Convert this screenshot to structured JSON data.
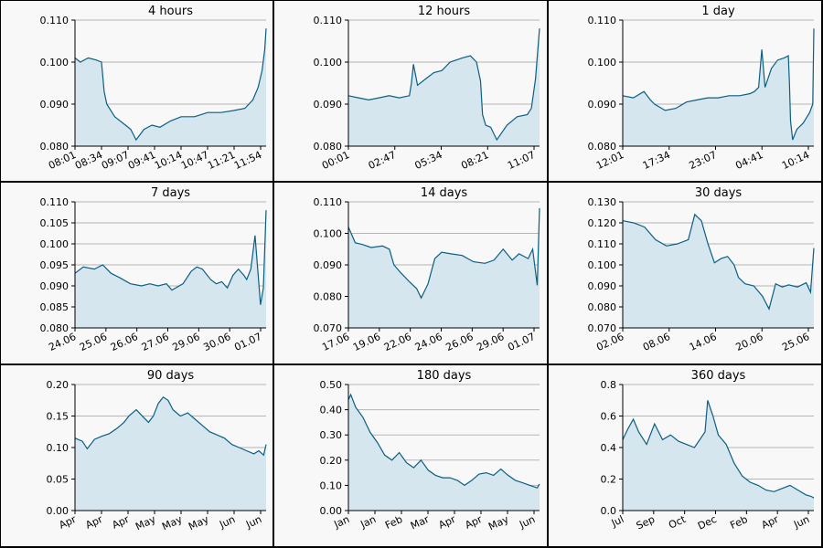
{
  "colors": {
    "line": "#0b5f82",
    "fill": "#d5e6ee",
    "grid": "#b5b5b5",
    "background": "#f8f8f8"
  },
  "chart_data": [
    {
      "type": "area",
      "title": "4 hours",
      "grid": true,
      "ylim": [
        0.08,
        0.11
      ],
      "yticks": [
        "0.080",
        "0.090",
        "0.100",
        "0.110"
      ],
      "xticks": [
        "08:01",
        "08:34",
        "09:07",
        "09:41",
        "10:14",
        "10:47",
        "11:21",
        "11:54"
      ],
      "x": [
        0,
        0.2,
        0.5,
        0.8,
        1.0,
        1.1,
        1.2,
        1.5,
        1.9,
        2.1,
        2.3,
        2.6,
        2.9,
        3.2,
        3.6,
        4.0,
        4.5,
        5.0,
        5.5,
        6.0,
        6.4,
        6.7,
        6.9,
        7.05,
        7.15,
        7.2
      ],
      "series": [
        {
          "values": [
            0.101,
            0.1,
            0.101,
            0.1005,
            0.1,
            0.093,
            0.09,
            0.087,
            0.085,
            0.084,
            0.0815,
            0.084,
            0.085,
            0.0845,
            0.086,
            0.087,
            0.087,
            0.088,
            0.088,
            0.0885,
            0.089,
            0.091,
            0.094,
            0.098,
            0.103,
            0.108
          ]
        }
      ]
    },
    {
      "type": "area",
      "title": "12 hours",
      "grid": true,
      "ylim": [
        0.08,
        0.11
      ],
      "yticks": [
        "0.080",
        "0.090",
        "0.100",
        "0.110"
      ],
      "xticks": [
        "00:01",
        "02:47",
        "05:34",
        "08:21",
        "11:07"
      ],
      "x": [
        0,
        0.5,
        1,
        1.5,
        2,
        2.5,
        3,
        3.1,
        3.2,
        3.4,
        3.8,
        4.2,
        4.6,
        5.0,
        5.6,
        6.0,
        6.3,
        6.5,
        6.6,
        6.75,
        7,
        7.3,
        7.8,
        8.3,
        8.8,
        9.0,
        9.2,
        9.4
      ],
      "series": [
        {
          "values": [
            0.092,
            0.0915,
            0.091,
            0.0915,
            0.092,
            0.0915,
            0.092,
            0.095,
            0.0995,
            0.0945,
            0.096,
            0.0975,
            0.098,
            0.1,
            0.101,
            0.1015,
            0.1,
            0.0955,
            0.0875,
            0.085,
            0.0845,
            0.0815,
            0.085,
            0.087,
            0.0875,
            0.089,
            0.096,
            0.108
          ]
        }
      ]
    },
    {
      "type": "area",
      "title": "1 day",
      "grid": true,
      "ylim": [
        0.08,
        0.11
      ],
      "yticks": [
        "0.080",
        "0.090",
        "0.100",
        "0.110"
      ],
      "xticks": [
        "12:01",
        "17:34",
        "23:07",
        "04:41",
        "10:14"
      ],
      "x": [
        0,
        0.5,
        1,
        1.3,
        1.5,
        2,
        2.5,
        3,
        3.5,
        4,
        4.5,
        5,
        5.5,
        6,
        6.2,
        6.4,
        6.55,
        6.7,
        7.0,
        7.3,
        7.6,
        7.8,
        7.85,
        7.9,
        8.0,
        8.2,
        8.5,
        8.8,
        8.95,
        9.0
      ],
      "series": [
        {
          "values": [
            0.092,
            0.0915,
            0.093,
            0.091,
            0.09,
            0.0885,
            0.089,
            0.0905,
            0.091,
            0.0915,
            0.0915,
            0.092,
            0.092,
            0.0925,
            0.093,
            0.094,
            0.103,
            0.094,
            0.0985,
            0.1005,
            0.101,
            0.1015,
            0.095,
            0.086,
            0.0815,
            0.084,
            0.0855,
            0.088,
            0.09,
            0.108
          ]
        }
      ]
    },
    {
      "type": "area",
      "title": "7 days",
      "grid": true,
      "ylim": [
        0.08,
        0.11
      ],
      "yticks": [
        "0.080",
        "0.085",
        "0.090",
        "0.095",
        "0.100",
        "0.105",
        "0.110"
      ],
      "xticks": [
        "24.06",
        "25.06",
        "26.06",
        "27.06",
        "29.06",
        "30.06",
        "01.07"
      ],
      "x": [
        0,
        0.3,
        0.7,
        1.0,
        1.3,
        1.6,
        2.0,
        2.4,
        2.7,
        3.0,
        3.3,
        3.5,
        3.9,
        4.2,
        4.4,
        4.6,
        4.9,
        5.1,
        5.3,
        5.5,
        5.7,
        5.9,
        6.1,
        6.2,
        6.35,
        6.5,
        6.7,
        6.8,
        6.9
      ],
      "series": [
        {
          "values": [
            0.093,
            0.0945,
            0.094,
            0.095,
            0.093,
            0.092,
            0.0905,
            0.09,
            0.0905,
            0.09,
            0.0905,
            0.089,
            0.0905,
            0.0935,
            0.0945,
            0.094,
            0.0915,
            0.0905,
            0.091,
            0.0895,
            0.0925,
            0.094,
            0.0925,
            0.0915,
            0.094,
            0.102,
            0.0855,
            0.0895,
            0.108
          ]
        }
      ]
    },
    {
      "type": "area",
      "title": "14 days",
      "grid": true,
      "ylim": [
        0.07,
        0.11
      ],
      "yticks": [
        "0.070",
        "0.080",
        "0.090",
        "0.100",
        "0.110"
      ],
      "xticks": [
        "17.06",
        "19.06",
        "22.06",
        "24.06",
        "26.06",
        "29.06",
        "01.07"
      ],
      "x": [
        0,
        0.3,
        0.6,
        1.0,
        1.5,
        1.8,
        2.0,
        2.3,
        2.7,
        3.0,
        3.2,
        3.5,
        3.8,
        4.1,
        4.5,
        5.0,
        5.5,
        6.0,
        6.4,
        6.8,
        7.2,
        7.5,
        7.9,
        8.1,
        8.3,
        8.4
      ],
      "series": [
        {
          "values": [
            0.102,
            0.097,
            0.0965,
            0.0955,
            0.096,
            0.095,
            0.09,
            0.0875,
            0.0845,
            0.0825,
            0.0795,
            0.084,
            0.092,
            0.094,
            0.0935,
            0.093,
            0.091,
            0.0905,
            0.0915,
            0.095,
            0.0915,
            0.0935,
            0.092,
            0.095,
            0.0835,
            0.108
          ]
        }
      ]
    },
    {
      "type": "area",
      "title": "30 days",
      "grid": true,
      "ylim": [
        0.07,
        0.13
      ],
      "yticks": [
        "0.070",
        "0.080",
        "0.090",
        "0.100",
        "0.110",
        "0.120",
        "0.130"
      ],
      "xticks": [
        "02.06",
        "08.06",
        "14.06",
        "20.06",
        "25.06"
      ],
      "x": [
        0,
        0.5,
        1.0,
        1.5,
        2.0,
        2.5,
        3.0,
        3.3,
        3.6,
        3.9,
        4.2,
        4.5,
        4.8,
        5.1,
        5.3,
        5.6,
        6.0,
        6.4,
        6.7,
        7.0,
        7.3,
        7.6,
        8.0,
        8.4,
        8.6,
        8.75
      ],
      "series": [
        {
          "values": [
            0.121,
            0.12,
            0.118,
            0.112,
            0.109,
            0.11,
            0.112,
            0.124,
            0.121,
            0.11,
            0.101,
            0.103,
            0.104,
            0.1,
            0.094,
            0.091,
            0.09,
            0.085,
            0.079,
            0.091,
            0.0895,
            0.0905,
            0.0895,
            0.0915,
            0.087,
            0.108
          ]
        }
      ]
    },
    {
      "type": "area",
      "title": "90 days",
      "grid": true,
      "ylim": [
        0,
        0.2
      ],
      "yticks": [
        "0.00",
        "0.05",
        "0.10",
        "0.15",
        "0.20"
      ],
      "xticks": [
        "Apr",
        "Apr",
        "Apr",
        "May",
        "May",
        "May",
        "Jun",
        "Jun"
      ],
      "x": [
        0,
        0.3,
        0.5,
        0.8,
        1.1,
        1.4,
        1.7,
        2.0,
        2.2,
        2.5,
        2.8,
        3.0,
        3.2,
        3.4,
        3.6,
        3.8,
        4.0,
        4.3,
        4.6,
        4.9,
        5.2,
        5.5,
        5.8,
        6.1,
        6.4,
        6.7,
        7.0,
        7.3,
        7.5,
        7.7,
        7.8
      ],
      "series": [
        {
          "values": [
            0.115,
            0.11,
            0.098,
            0.113,
            0.118,
            0.122,
            0.13,
            0.14,
            0.15,
            0.16,
            0.148,
            0.14,
            0.15,
            0.17,
            0.18,
            0.175,
            0.16,
            0.15,
            0.155,
            0.145,
            0.135,
            0.125,
            0.12,
            0.115,
            0.105,
            0.1,
            0.095,
            0.09,
            0.095,
            0.088,
            0.105
          ]
        }
      ]
    },
    {
      "type": "area",
      "title": "180 days",
      "grid": true,
      "ylim": [
        0,
        0.5
      ],
      "yticks": [
        "0.00",
        "0.10",
        "0.20",
        "0.30",
        "0.40",
        "0.50"
      ],
      "xticks": [
        "Jan",
        "Jan",
        "Feb",
        "Mar",
        "Apr",
        "Apr",
        "May",
        "Jun"
      ],
      "x": [
        0,
        0.1,
        0.3,
        0.6,
        0.9,
        1.2,
        1.5,
        1.8,
        2.1,
        2.4,
        2.7,
        3.0,
        3.3,
        3.6,
        3.9,
        4.2,
        4.5,
        4.8,
        5.1,
        5.4,
        5.7,
        6.0,
        6.3,
        6.6,
        6.9,
        7.2,
        7.5,
        7.8,
        7.9
      ],
      "series": [
        {
          "values": [
            0.44,
            0.46,
            0.41,
            0.37,
            0.31,
            0.27,
            0.22,
            0.2,
            0.23,
            0.19,
            0.17,
            0.2,
            0.16,
            0.14,
            0.13,
            0.13,
            0.12,
            0.1,
            0.12,
            0.145,
            0.15,
            0.14,
            0.165,
            0.14,
            0.12,
            0.11,
            0.1,
            0.09,
            0.105
          ]
        }
      ]
    },
    {
      "type": "area",
      "title": "360 days",
      "grid": true,
      "ylim": [
        0,
        0.8
      ],
      "yticks": [
        "0.0",
        "0.2",
        "0.4",
        "0.6",
        "0.8"
      ],
      "xticks": [
        "Jul",
        "Sep",
        "Oct",
        "Dec",
        "Feb",
        "Apr",
        "Jun"
      ],
      "x": [
        0,
        0.2,
        0.4,
        0.6,
        0.9,
        1.2,
        1.5,
        1.8,
        2.1,
        2.4,
        2.7,
        2.9,
        3.1,
        3.2,
        3.4,
        3.6,
        3.9,
        4.2,
        4.5,
        4.8,
        5.1,
        5.4,
        5.7,
        6.0,
        6.3,
        6.6,
        6.9,
        7.1,
        7.2
      ],
      "series": [
        {
          "values": [
            0.45,
            0.52,
            0.58,
            0.5,
            0.42,
            0.55,
            0.45,
            0.48,
            0.44,
            0.42,
            0.4,
            0.45,
            0.5,
            0.7,
            0.6,
            0.48,
            0.42,
            0.3,
            0.22,
            0.18,
            0.16,
            0.13,
            0.12,
            0.14,
            0.16,
            0.13,
            0.1,
            0.09,
            0.08
          ]
        }
      ]
    }
  ]
}
